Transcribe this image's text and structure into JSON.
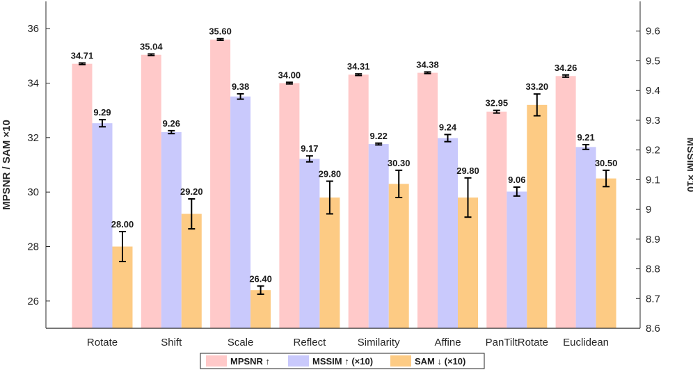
{
  "chart_data": {
    "type": "bar",
    "categories": [
      "Rotate",
      "Shift",
      "Scale",
      "Reflect",
      "Similarity",
      "Affine",
      "PanTiltRotate",
      "Euclidean"
    ],
    "series": [
      {
        "name": "MPSNR",
        "arrow": "↑",
        "axis": "left",
        "color": "#ffc9c9",
        "values": [
          34.71,
          35.04,
          35.6,
          34.0,
          34.31,
          34.38,
          32.95,
          34.26
        ],
        "errors": [
          0.03,
          0.03,
          0.03,
          0.03,
          0.03,
          0.03,
          0.05,
          0.04
        ],
        "labels": [
          "34.71",
          "35.04",
          "35.60",
          "34.00",
          "34.31",
          "34.38",
          "32.95",
          "34.26"
        ]
      },
      {
        "name": "MSSIM",
        "arrow": "↑",
        "suffix": "(×10)",
        "axis": "right",
        "color": "#c9c9fc",
        "values": [
          9.29,
          9.26,
          9.38,
          9.17,
          9.22,
          9.24,
          9.06,
          9.21
        ],
        "errors": [
          0.012,
          0.005,
          0.009,
          0.01,
          0.003,
          0.012,
          0.015,
          0.008
        ],
        "labels": [
          "9.29",
          "9.26",
          "9.38",
          "9.17",
          "9.22",
          "9.24",
          "9.06",
          "9.21"
        ]
      },
      {
        "name": "SAM",
        "arrow": "↓",
        "suffix": "(×10)",
        "axis": "left",
        "color": "#fdcb84",
        "values": [
          28.0,
          29.2,
          26.4,
          29.8,
          30.3,
          29.8,
          33.2,
          30.5
        ],
        "errors": [
          0.55,
          0.55,
          0.15,
          0.6,
          0.5,
          0.72,
          0.4,
          0.3
        ],
        "labels": [
          "28.00",
          "29.20",
          "26.40",
          "29.80",
          "30.30",
          "29.80",
          "33.20",
          "30.50"
        ]
      }
    ],
    "ylabel_left": "MPSNR / SAM ×10",
    "ylabel_right": "MSSIM ×10",
    "ylim_left": [
      25,
      37
    ],
    "ylim_right": [
      8.6,
      9.7
    ],
    "yticks_left": [
      "26",
      "28",
      "30",
      "32",
      "34",
      "36"
    ],
    "yticks_right": [
      "8.6",
      "8.7",
      "8.8",
      "8.9",
      "9",
      "9.1",
      "9.2",
      "9.3",
      "9.4",
      "9.5",
      "9.6"
    ],
    "legend_position": "bottom-center",
    "grid": false
  }
}
